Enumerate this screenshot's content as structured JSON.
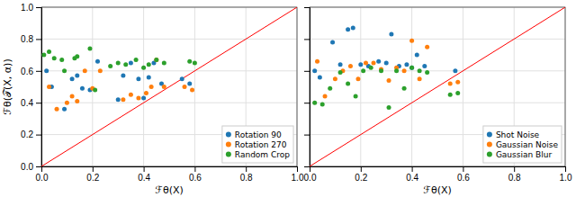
{
  "chart_data": [
    {
      "type": "scatter",
      "xlabel": "ℱθ(X)",
      "ylabel": "ℱθ(𝒯(X, α))",
      "marker": "circle",
      "series": [
        {
          "name": "Rotation 90",
          "color": "#1f77b4",
          "x": [
            0.02,
            0.04,
            0.09,
            0.12,
            0.14,
            0.16,
            0.19,
            0.22,
            0.3,
            0.32,
            0.35,
            0.38,
            0.4,
            0.42,
            0.44,
            0.47,
            0.55,
            0.58
          ],
          "values": [
            0.6,
            0.5,
            0.36,
            0.55,
            0.57,
            0.49,
            0.48,
            0.66,
            0.42,
            0.57,
            0.65,
            0.55,
            0.43,
            0.56,
            0.65,
            0.52,
            0.55,
            0.52
          ]
        },
        {
          "name": "Rotation 270",
          "color": "#ff7f0e",
          "x": [
            0.03,
            0.06,
            0.1,
            0.12,
            0.14,
            0.17,
            0.2,
            0.23,
            0.32,
            0.35,
            0.38,
            0.41,
            0.43,
            0.45,
            0.48,
            0.56,
            0.59
          ],
          "values": [
            0.5,
            0.36,
            0.4,
            0.44,
            0.41,
            0.6,
            0.49,
            0.6,
            0.42,
            0.45,
            0.43,
            0.46,
            0.5,
            0.67,
            0.5,
            0.5,
            0.48
          ]
        },
        {
          "name": "Random Crop",
          "color": "#2ca02c",
          "x": [
            0.01,
            0.03,
            0.05,
            0.08,
            0.09,
            0.13,
            0.14,
            0.19,
            0.21,
            0.27,
            0.3,
            0.33,
            0.37,
            0.4,
            0.42,
            0.45,
            0.48,
            0.58,
            0.6
          ],
          "values": [
            0.7,
            0.72,
            0.68,
            0.67,
            0.6,
            0.68,
            0.69,
            0.74,
            0.48,
            0.63,
            0.65,
            0.64,
            0.67,
            0.62,
            0.64,
            0.67,
            0.65,
            0.66,
            0.65
          ]
        }
      ],
      "xlim": [
        0.0,
        1.0
      ],
      "ylim": [
        0.0,
        1.0
      ],
      "xticks": [
        {
          "value": 0.0,
          "label": "0.0"
        },
        0.2,
        0.4,
        0.6,
        0.8,
        {
          "value": 1.0,
          "label": "1.0"
        }
      ],
      "yticks": [
        {
          "value": 0.0,
          "label": "0.0"
        },
        0.2,
        0.4,
        0.6,
        0.8,
        {
          "value": 1.0,
          "label": "1.0"
        }
      ],
      "grid": true,
      "legend": "lower right"
    },
    {
      "type": "scatter",
      "xlabel": "ℱθ(X)",
      "marker": "circle",
      "series": [
        {
          "name": "Shot Noise",
          "color": "#1f77b4",
          "x": [
            0.02,
            0.04,
            0.09,
            0.12,
            0.15,
            0.17,
            0.2,
            0.23,
            0.27,
            0.3,
            0.32,
            0.35,
            0.38,
            0.4,
            0.42,
            0.45,
            0.57
          ],
          "values": [
            0.6,
            0.56,
            0.78,
            0.64,
            0.86,
            0.87,
            0.64,
            0.63,
            0.66,
            0.65,
            0.83,
            0.63,
            0.64,
            0.62,
            0.7,
            0.63,
            0.6
          ]
        },
        {
          "name": "Gaussian Noise",
          "color": "#ff7f0e",
          "x": [
            0.03,
            0.06,
            0.1,
            0.13,
            0.16,
            0.19,
            0.22,
            0.25,
            0.28,
            0.31,
            0.34,
            0.37,
            0.4,
            0.43,
            0.46,
            0.55,
            0.58
          ],
          "values": [
            0.66,
            0.44,
            0.55,
            0.6,
            0.63,
            0.55,
            0.65,
            0.65,
            0.61,
            0.54,
            0.62,
            0.6,
            0.79,
            0.55,
            0.75,
            0.52,
            0.53
          ]
        },
        {
          "name": "Gaussian Blur",
          "color": "#2ca02c",
          "x": [
            0.02,
            0.05,
            0.08,
            0.12,
            0.15,
            0.18,
            0.21,
            0.24,
            0.28,
            0.31,
            0.34,
            0.37,
            0.4,
            0.43,
            0.46,
            0.55,
            0.58
          ],
          "values": [
            0.4,
            0.39,
            0.49,
            0.59,
            0.52,
            0.44,
            0.6,
            0.62,
            0.6,
            0.37,
            0.6,
            0.49,
            0.62,
            0.6,
            0.59,
            0.45,
            0.46
          ]
        }
      ],
      "xlim": [
        0.0,
        1.0
      ],
      "ylim": [
        0.0,
        1.0
      ],
      "xticks": [
        {
          "value": 0.0,
          "label": "0.0"
        },
        0.2,
        0.4,
        0.6,
        0.8,
        {
          "value": 1.0,
          "label": "1.0"
        }
      ],
      "yticks": [
        0.0,
        0.2,
        0.4,
        0.6,
        0.8,
        1.0
      ],
      "grid": true,
      "legend": "lower right",
      "tick_labels": "x"
    }
  ]
}
